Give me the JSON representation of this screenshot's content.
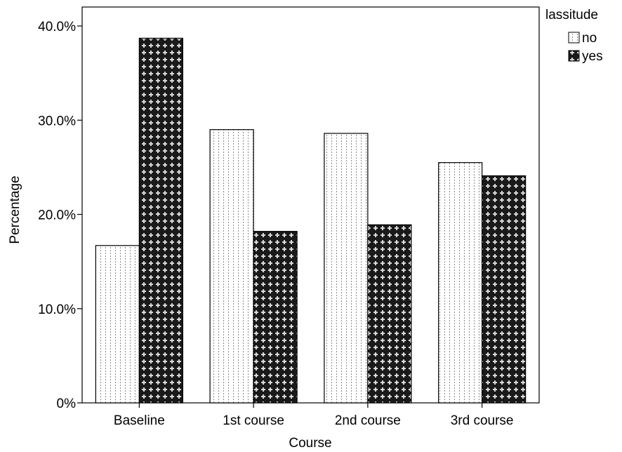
{
  "chart_data": {
    "type": "bar",
    "title": "",
    "xlabel": "Course",
    "ylabel": "Percentage",
    "categories": [
      "Baseline",
      "1st course",
      "2nd course",
      "3rd course"
    ],
    "series": [
      {
        "name": "no",
        "values": [
          16.7,
          29.0,
          28.6,
          25.5
        ],
        "pattern": "dotted",
        "color": "#ffffff"
      },
      {
        "name": "yes",
        "values": [
          38.7,
          18.2,
          18.9,
          24.1
        ],
        "pattern": "cross",
        "color": "#1a1a1a"
      }
    ],
    "ylim": [
      0,
      40
    ],
    "yticks": [
      0,
      10,
      20,
      30,
      40
    ],
    "ytick_labels": [
      "0%",
      "10.0%",
      "20.0%",
      "30.0%",
      "40.0%"
    ],
    "grid": false,
    "legend": {
      "title": "lassitude",
      "position": "top-right"
    }
  }
}
